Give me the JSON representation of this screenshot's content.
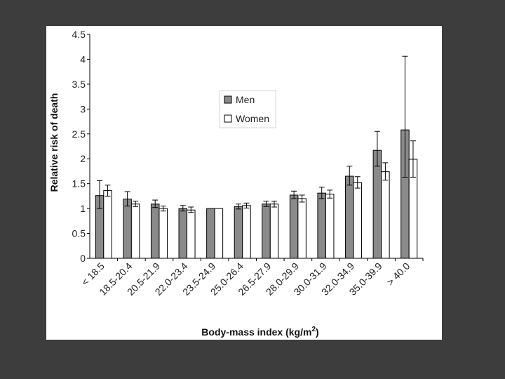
{
  "chart_data": {
    "type": "bar",
    "xlabel": "Body-mass index (kg/m",
    "xlabel_sup": "2",
    "xlabel_suffix": ")",
    "ylabel": "Relative risk of death",
    "ylim": [
      0,
      4.5
    ],
    "yticks": [
      "0",
      "0.5",
      "1",
      "1.5",
      "2",
      "2.5",
      "3",
      "3.5",
      "4",
      "4.5"
    ],
    "categories": [
      "< 18.5",
      "18.5-20.4",
      "20.5-21.9",
      "22.0-23.4",
      "23.5-24.9",
      "25.0-26.4",
      "26.5-27.9",
      "28.0-29.9",
      "30.0-31.9",
      "32.0-34.9",
      "35.0-39.9",
      "> 40.0"
    ],
    "series": [
      {
        "name": "Men",
        "color": "#8a8a8a",
        "values": [
          1.26,
          1.19,
          1.09,
          1.0,
          1.0,
          1.04,
          1.09,
          1.27,
          1.31,
          1.65,
          2.17,
          2.58
        ],
        "err_high": [
          1.56,
          1.34,
          1.17,
          1.06,
          1.0,
          1.09,
          1.15,
          1.35,
          1.43,
          1.85,
          2.55,
          4.06
        ],
        "err_low": [
          1.0,
          1.05,
          1.02,
          0.95,
          1.0,
          0.99,
          1.04,
          1.2,
          1.2,
          1.47,
          1.85,
          1.63
        ]
      },
      {
        "name": "Women",
        "color": "#ffffff",
        "values": [
          1.36,
          1.09,
          1.0,
          0.97,
          1.0,
          1.06,
          1.09,
          1.2,
          1.29,
          1.52,
          1.74,
          1.99
        ],
        "err_high": [
          1.47,
          1.15,
          1.05,
          1.03,
          1.0,
          1.11,
          1.15,
          1.27,
          1.37,
          1.64,
          1.92,
          2.36
        ],
        "err_low": [
          1.25,
          1.04,
          0.95,
          0.92,
          1.0,
          1.01,
          1.03,
          1.13,
          1.21,
          1.41,
          1.57,
          1.63
        ]
      }
    ],
    "legend_position": "center-top"
  }
}
